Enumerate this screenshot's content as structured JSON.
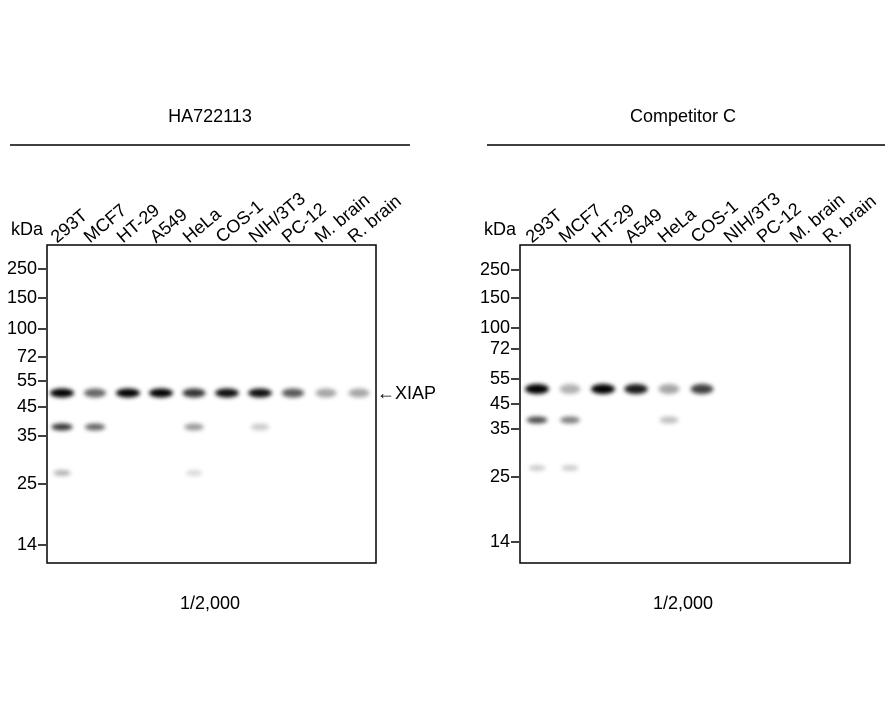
{
  "panels": [
    {
      "title": "HA722113",
      "kda_label": "kDa",
      "lanes": [
        "293T",
        "MCF7",
        "HT-29",
        "A549",
        "HeLa",
        "COS-1",
        "NIH/3T3",
        "PC-12",
        "M. brain",
        "R. brain"
      ],
      "markers": [
        "250",
        "150",
        "100",
        "72",
        "55",
        "45",
        "35",
        "25",
        "14"
      ],
      "target_label": "←XIAP",
      "dilution": "1/2,000"
    },
    {
      "title": "Competitor C",
      "kda_label": "kDa",
      "lanes": [
        "293T",
        "MCF7",
        "HT-29",
        "A549",
        "HeLa",
        "COS-1",
        "NIH/3T3",
        "PC-12",
        "M. brain",
        "R. brain"
      ],
      "markers": [
        "250",
        "150",
        "100",
        "72",
        "55",
        "45",
        "35",
        "25",
        "14"
      ],
      "dilution": "1/2,000"
    }
  ]
}
